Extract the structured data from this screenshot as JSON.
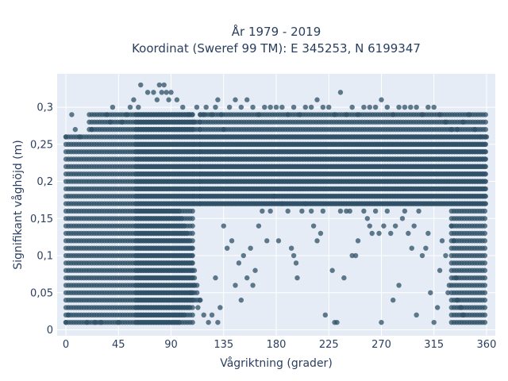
{
  "chart_data": {
    "type": "scatter",
    "title_line1": "År 1979 - 2019",
    "title_line2": "Koordinat (Sweref 99 TM): E 345253, N 6199347",
    "xlabel": "Vågriktning (grader)",
    "ylabel": "Signifikant våghöjd (m)",
    "xlim": [
      -7.5,
      367.5
    ],
    "ylim": [
      -0.008,
      0.345
    ],
    "x_ticks": [
      0,
      45,
      90,
      135,
      180,
      225,
      270,
      315,
      360
    ],
    "x_tick_labels": [
      "0",
      "45",
      "90",
      "135",
      "180",
      "225",
      "270",
      "315",
      "360"
    ],
    "y_ticks": [
      0,
      0.05,
      0.1,
      0.15,
      0.2,
      0.25,
      0.3
    ],
    "y_tick_labels": [
      "0",
      "0,05",
      "0,1",
      "0,15",
      "0,2",
      "0,25",
      "0,3"
    ],
    "grid": true,
    "marker_color": "#2f5066",
    "plot_bg": "#e5ecf6",
    "data_note": "Dense banded point cloud: direction 0-360 deg, wave height in 0.01 m steps. Dominant mass for directions 0-110 deg with heights 0.01-0.29 m; heights 0.17-0.30 m across all directions; sparse points 0.01-0.16 m for 180-330 deg; dense low heights again for 330-360 deg.",
    "series": [
      {
        "name": "",
        "points": [
          [
            0,
            0.01
          ],
          [
            0,
            0.26
          ],
          [
            2,
            0.02
          ],
          [
            5,
            0.29
          ],
          [
            8,
            0.27
          ],
          [
            12,
            0.26
          ],
          [
            18,
            0.01
          ],
          [
            22,
            0.27
          ],
          [
            25,
            0.01
          ],
          [
            30,
            0.01
          ],
          [
            35,
            0.29
          ],
          [
            38,
            0.28
          ],
          [
            40,
            0.3
          ],
          [
            45,
            0.01
          ],
          [
            48,
            0.28
          ],
          [
            52,
            0.29
          ],
          [
            55,
            0.3
          ],
          [
            58,
            0.31
          ],
          [
            62,
            0.3
          ],
          [
            64,
            0.33
          ],
          [
            70,
            0.32
          ],
          [
            75,
            0.32
          ],
          [
            78,
            0.31
          ],
          [
            80,
            0.33
          ],
          [
            82,
            0.32
          ],
          [
            84,
            0.33
          ],
          [
            86,
            0.32
          ],
          [
            88,
            0.31
          ],
          [
            90,
            0.32
          ],
          [
            95,
            0.31
          ],
          [
            100,
            0.3
          ],
          [
            105,
            0.29
          ],
          [
            110,
            0.28
          ],
          [
            112,
            0.3
          ],
          [
            115,
            0.29
          ],
          [
            118,
            0.29
          ],
          [
            120,
            0.3
          ],
          [
            125,
            0.29
          ],
          [
            128,
            0.3
          ],
          [
            130,
            0.31
          ],
          [
            133,
            0.29
          ],
          [
            135,
            0.27
          ],
          [
            140,
            0.3
          ],
          [
            145,
            0.31
          ],
          [
            150,
            0.3
          ],
          [
            155,
            0.31
          ],
          [
            160,
            0.3
          ],
          [
            165,
            0.29
          ],
          [
            170,
            0.3
          ],
          [
            175,
            0.3
          ],
          [
            180,
            0.3
          ],
          [
            185,
            0.3
          ],
          [
            190,
            0.29
          ],
          [
            195,
            0.3
          ],
          [
            200,
            0.29
          ],
          [
            205,
            0.3
          ],
          [
            210,
            0.3
          ],
          [
            215,
            0.31
          ],
          [
            220,
            0.3
          ],
          [
            225,
            0.3
          ],
          [
            230,
            0.29
          ],
          [
            235,
            0.32
          ],
          [
            240,
            0.29
          ],
          [
            245,
            0.3
          ],
          [
            250,
            0.29
          ],
          [
            255,
            0.3
          ],
          [
            260,
            0.3
          ],
          [
            265,
            0.3
          ],
          [
            270,
            0.31
          ],
          [
            275,
            0.3
          ],
          [
            280,
            0.29
          ],
          [
            285,
            0.3
          ],
          [
            290,
            0.3
          ],
          [
            295,
            0.3
          ],
          [
            300,
            0.3
          ],
          [
            305,
            0.29
          ],
          [
            310,
            0.3
          ],
          [
            315,
            0.3
          ],
          [
            320,
            0.29
          ],
          [
            325,
            0.28
          ],
          [
            330,
            0.27
          ],
          [
            335,
            0.27
          ],
          [
            340,
            0.28
          ],
          [
            345,
            0.29
          ],
          [
            350,
            0.27
          ],
          [
            355,
            0.26
          ],
          [
            360,
            0.26
          ],
          [
            107,
            0.05
          ],
          [
            110,
            0.06
          ],
          [
            113,
            0.03
          ],
          [
            115,
            0.04
          ],
          [
            118,
            0.02
          ],
          [
            122,
            0.01
          ],
          [
            125,
            0.02
          ],
          [
            128,
            0.07
          ],
          [
            130,
            0.01
          ],
          [
            132,
            0.03
          ],
          [
            135,
            0.14
          ],
          [
            138,
            0.11
          ],
          [
            142,
            0.12
          ],
          [
            145,
            0.06
          ],
          [
            148,
            0.09
          ],
          [
            150,
            0.04
          ],
          [
            152,
            0.1
          ],
          [
            155,
            0.07
          ],
          [
            158,
            0.11
          ],
          [
            160,
            0.06
          ],
          [
            162,
            0.08
          ],
          [
            165,
            0.14
          ],
          [
            168,
            0.16
          ],
          [
            172,
            0.12
          ],
          [
            175,
            0.16
          ],
          [
            178,
            0.18
          ],
          [
            182,
            0.12
          ],
          [
            185,
            0.17
          ],
          [
            190,
            0.16
          ],
          [
            193,
            0.11
          ],
          [
            195,
            0.1
          ],
          [
            197,
            0.09
          ],
          [
            198,
            0.07
          ],
          [
            202,
            0.16
          ],
          [
            205,
            0.17
          ],
          [
            210,
            0.16
          ],
          [
            212,
            0.14
          ],
          [
            215,
            0.12
          ],
          [
            218,
            0.13
          ],
          [
            220,
            0.16
          ],
          [
            222,
            0.02
          ],
          [
            228,
            0.08
          ],
          [
            230,
            0.01
          ],
          [
            232,
            0.01
          ],
          [
            235,
            0.16
          ],
          [
            238,
            0.07
          ],
          [
            240,
            0.16
          ],
          [
            243,
            0.16
          ],
          [
            245,
            0.1
          ],
          [
            248,
            0.1
          ],
          [
            250,
            0.12
          ],
          [
            255,
            0.16
          ],
          [
            258,
            0.15
          ],
          [
            260,
            0.14
          ],
          [
            262,
            0.13
          ],
          [
            265,
            0.16
          ],
          [
            268,
            0.13
          ],
          [
            270,
            0.01
          ],
          [
            272,
            0.14
          ],
          [
            275,
            0.16
          ],
          [
            278,
            0.13
          ],
          [
            280,
            0.04
          ],
          [
            282,
            0.14
          ],
          [
            285,
            0.06
          ],
          [
            288,
            0.15
          ],
          [
            290,
            0.16
          ],
          [
            293,
            0.13
          ],
          [
            296,
            0.11
          ],
          [
            298,
            0.14
          ],
          [
            300,
            0.02
          ],
          [
            302,
            0.16
          ],
          [
            305,
            0.1
          ],
          [
            308,
            0.11
          ],
          [
            310,
            0.13
          ],
          [
            312,
            0.05
          ],
          [
            315,
            0.01
          ],
          [
            318,
            0.03
          ],
          [
            320,
            0.08
          ],
          [
            322,
            0.12
          ],
          [
            325,
            0.1
          ],
          [
            327,
            0.05
          ],
          [
            328,
            0.06
          ],
          [
            330,
            0.14
          ],
          [
            332,
            0.12
          ],
          [
            334,
            0.07
          ],
          [
            335,
            0.04
          ],
          [
            338,
            0.03
          ],
          [
            340,
            0.02
          ]
        ]
      }
    ]
  }
}
